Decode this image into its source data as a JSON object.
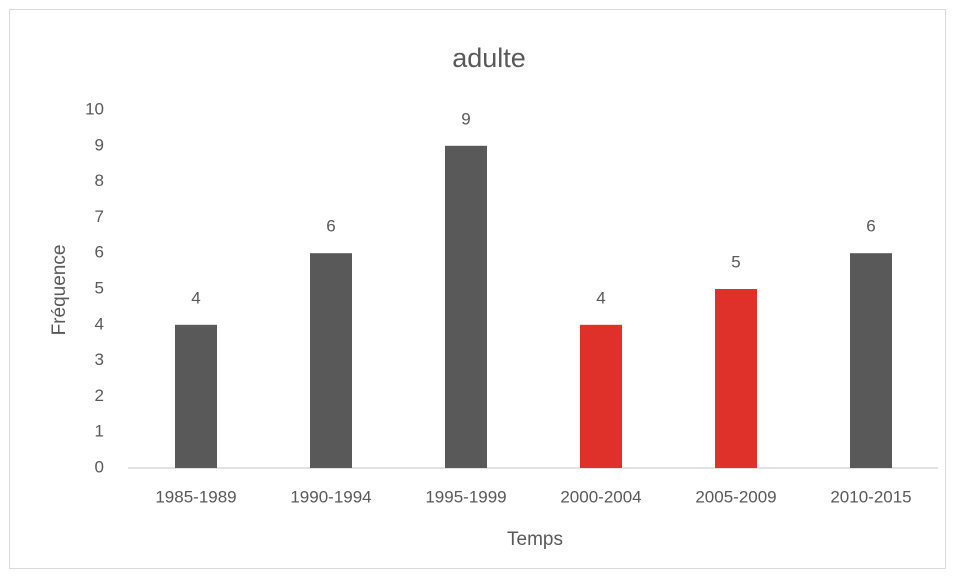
{
  "chart_data": {
    "type": "bar",
    "title": "adulte",
    "x_label": "Temps",
    "y_label": "Fréquence",
    "categories": [
      "1985-1989",
      "1990-1994",
      "1995-1999",
      "2000-2004",
      "2005-2009",
      "2010-2015"
    ],
    "values": [
      4,
      6,
      9,
      4,
      5,
      6
    ],
    "colors": [
      "#595959",
      "#595959",
      "#595959",
      "#e0302a",
      "#e0302a",
      "#595959"
    ],
    "ylim": [
      0,
      10
    ],
    "yticks": [
      0,
      1,
      2,
      3,
      4,
      5,
      6,
      7,
      8,
      9,
      10
    ],
    "grid": false
  }
}
